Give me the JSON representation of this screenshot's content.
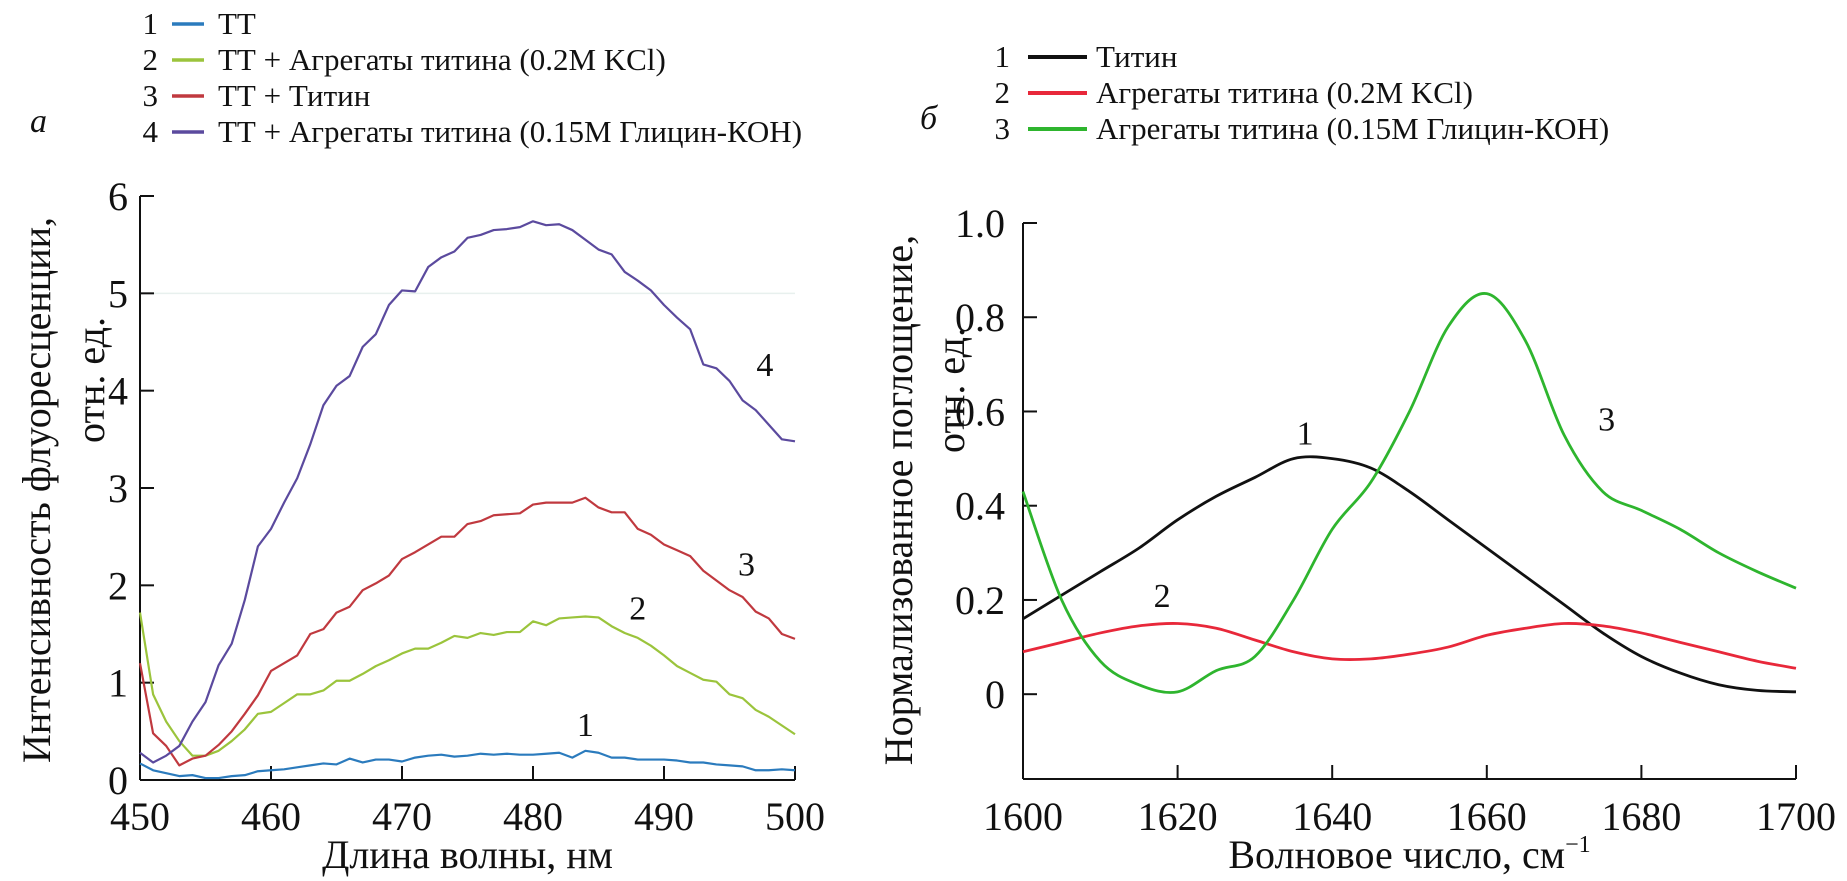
{
  "chart_data": [
    {
      "panel_label": "а",
      "type": "line",
      "title": "",
      "xlabel": "Длина волны, нм",
      "ylabel_line1": "Интенсивность флуоресценции,",
      "ylabel_line2": "отн. ед.",
      "xlim": [
        450,
        500
      ],
      "ylim": [
        0,
        6
      ],
      "xticks": [
        450,
        460,
        470,
        480,
        490,
        500
      ],
      "yticks": [
        0,
        1,
        2,
        3,
        4,
        5,
        6
      ],
      "grid": false,
      "legend_position": "top-left",
      "x": [
        450,
        451,
        452,
        453,
        454,
        455,
        456,
        457,
        458,
        459,
        460,
        461,
        462,
        463,
        464,
        465,
        466,
        467,
        468,
        469,
        470,
        471,
        472,
        473,
        474,
        475,
        476,
        477,
        478,
        479,
        480,
        481,
        482,
        483,
        484,
        485,
        486,
        487,
        488,
        489,
        490,
        491,
        492,
        493,
        494,
        495,
        496,
        497,
        498,
        499,
        500
      ],
      "series": [
        {
          "id": "1",
          "name": "ТТ",
          "color": "#2b7bbd",
          "values": [
            0.17,
            0.1,
            0.07,
            0.04,
            0.05,
            0.02,
            0.02,
            0.04,
            0.05,
            0.09,
            0.1,
            0.11,
            0.13,
            0.15,
            0.17,
            0.16,
            0.22,
            0.18,
            0.21,
            0.21,
            0.19,
            0.23,
            0.25,
            0.26,
            0.24,
            0.25,
            0.27,
            0.26,
            0.27,
            0.26,
            0.26,
            0.27,
            0.28,
            0.23,
            0.3,
            0.28,
            0.23,
            0.23,
            0.21,
            0.21,
            0.21,
            0.2,
            0.18,
            0.18,
            0.16,
            0.15,
            0.14,
            0.1,
            0.1,
            0.11,
            0.1
          ],
          "curve_label_x": 484,
          "curve_label_y": 0.45
        },
        {
          "id": "2",
          "name": "ТТ + Агрегаты титина (0.2M KCl)",
          "color": "#9bc43c",
          "values": [
            1.72,
            0.88,
            0.6,
            0.4,
            0.25,
            0.25,
            0.3,
            0.4,
            0.52,
            0.68,
            0.7,
            0.79,
            0.88,
            0.88,
            0.92,
            1.02,
            1.02,
            1.09,
            1.17,
            1.23,
            1.3,
            1.35,
            1.35,
            1.41,
            1.48,
            1.46,
            1.51,
            1.49,
            1.52,
            1.52,
            1.63,
            1.59,
            1.66,
            1.67,
            1.68,
            1.67,
            1.58,
            1.51,
            1.46,
            1.38,
            1.28,
            1.17,
            1.1,
            1.03,
            1.01,
            0.88,
            0.84,
            0.72,
            0.65,
            0.56,
            0.47
          ],
          "curve_label_x": 488,
          "curve_label_y": 1.65
        },
        {
          "id": "3",
          "name": "ТТ + Титин",
          "color": "#c0393f",
          "values": [
            1.2,
            0.48,
            0.35,
            0.15,
            0.22,
            0.25,
            0.36,
            0.5,
            0.68,
            0.87,
            1.12,
            1.2,
            1.28,
            1.5,
            1.55,
            1.72,
            1.78,
            1.95,
            2.02,
            2.1,
            2.27,
            2.34,
            2.42,
            2.5,
            2.5,
            2.63,
            2.66,
            2.72,
            2.73,
            2.74,
            2.83,
            2.85,
            2.85,
            2.85,
            2.9,
            2.8,
            2.75,
            2.75,
            2.58,
            2.52,
            2.42,
            2.36,
            2.3,
            2.15,
            2.05,
            1.95,
            1.88,
            1.73,
            1.66,
            1.5,
            1.45
          ],
          "curve_label_x": 496.3,
          "curve_label_y": 2.1
        },
        {
          "id": "4",
          "name": "ТТ + Агрегаты титина (0.15M Глицин-КОН)",
          "color": "#5b4a9e",
          "values": [
            0.28,
            0.18,
            0.25,
            0.35,
            0.6,
            0.8,
            1.18,
            1.4,
            1.85,
            2.4,
            2.58,
            2.85,
            3.1,
            3.45,
            3.85,
            4.05,
            4.15,
            4.45,
            4.58,
            4.88,
            5.03,
            5.02,
            5.27,
            5.37,
            5.43,
            5.57,
            5.6,
            5.65,
            5.66,
            5.68,
            5.74,
            5.7,
            5.71,
            5.65,
            5.55,
            5.45,
            5.4,
            5.22,
            5.13,
            5.03,
            4.88,
            4.75,
            4.63,
            4.27,
            4.23,
            4.1,
            3.9,
            3.8,
            3.65,
            3.5,
            3.48
          ],
          "curve_label_x": 497.7,
          "curve_label_y": 4.15
        }
      ],
      "reference_line_y": 5
    },
    {
      "panel_label": "б",
      "type": "line",
      "title": "",
      "xlabel": "Волновое число, см",
      "xlabel_superscript": "−1",
      "ylabel_line1": "Нормализованное поглощение,",
      "ylabel_line2": "отн. ед.",
      "xlim": [
        1600,
        1700
      ],
      "ylim": [
        -0.18,
        1.0
      ],
      "xticks": [
        1600,
        1620,
        1640,
        1660,
        1680,
        1700
      ],
      "yticks": [
        0,
        0.2,
        0.4,
        0.6,
        0.8,
        1.0
      ],
      "ytick_labels": [
        "0",
        "0.2",
        "0.4",
        "0.6",
        "0.8",
        "1.0"
      ],
      "grid": false,
      "legend_position": "top-left",
      "x": [
        1600,
        1605,
        1610,
        1615,
        1620,
        1625,
        1630,
        1635,
        1640,
        1645,
        1650,
        1655,
        1660,
        1665,
        1670,
        1675,
        1680,
        1685,
        1690,
        1695,
        1700
      ],
      "series": [
        {
          "id": "1",
          "name": "Титин",
          "color": "#111111",
          "values": [
            0.16,
            0.21,
            0.26,
            0.31,
            0.37,
            0.42,
            0.46,
            0.5,
            0.5,
            0.48,
            0.43,
            0.37,
            0.31,
            0.25,
            0.19,
            0.13,
            0.08,
            0.045,
            0.02,
            0.008,
            0.005
          ],
          "curve_label_x": 1636.5,
          "curve_label_y": 0.53
        },
        {
          "id": "2",
          "name": "Агрегаты титина (0.2M KCl)",
          "color": "#e8283a",
          "values": [
            0.09,
            0.11,
            0.13,
            0.145,
            0.15,
            0.14,
            0.115,
            0.09,
            0.075,
            0.075,
            0.085,
            0.1,
            0.125,
            0.14,
            0.15,
            0.145,
            0.13,
            0.11,
            0.09,
            0.07,
            0.055
          ],
          "curve_label_x": 1618,
          "curve_label_y": 0.185
        },
        {
          "id": "3",
          "name": "Агрегаты титина (0.15M Глицин-КОН)",
          "color": "#2eb52e",
          "values": [
            0.43,
            0.2,
            0.07,
            0.02,
            0.005,
            0.05,
            0.08,
            0.2,
            0.35,
            0.45,
            0.6,
            0.78,
            0.85,
            0.75,
            0.55,
            0.43,
            0.39,
            0.35,
            0.3,
            0.26,
            0.225
          ],
          "curve_label_x": 1675.5,
          "curve_label_y": 0.56
        }
      ]
    }
  ]
}
